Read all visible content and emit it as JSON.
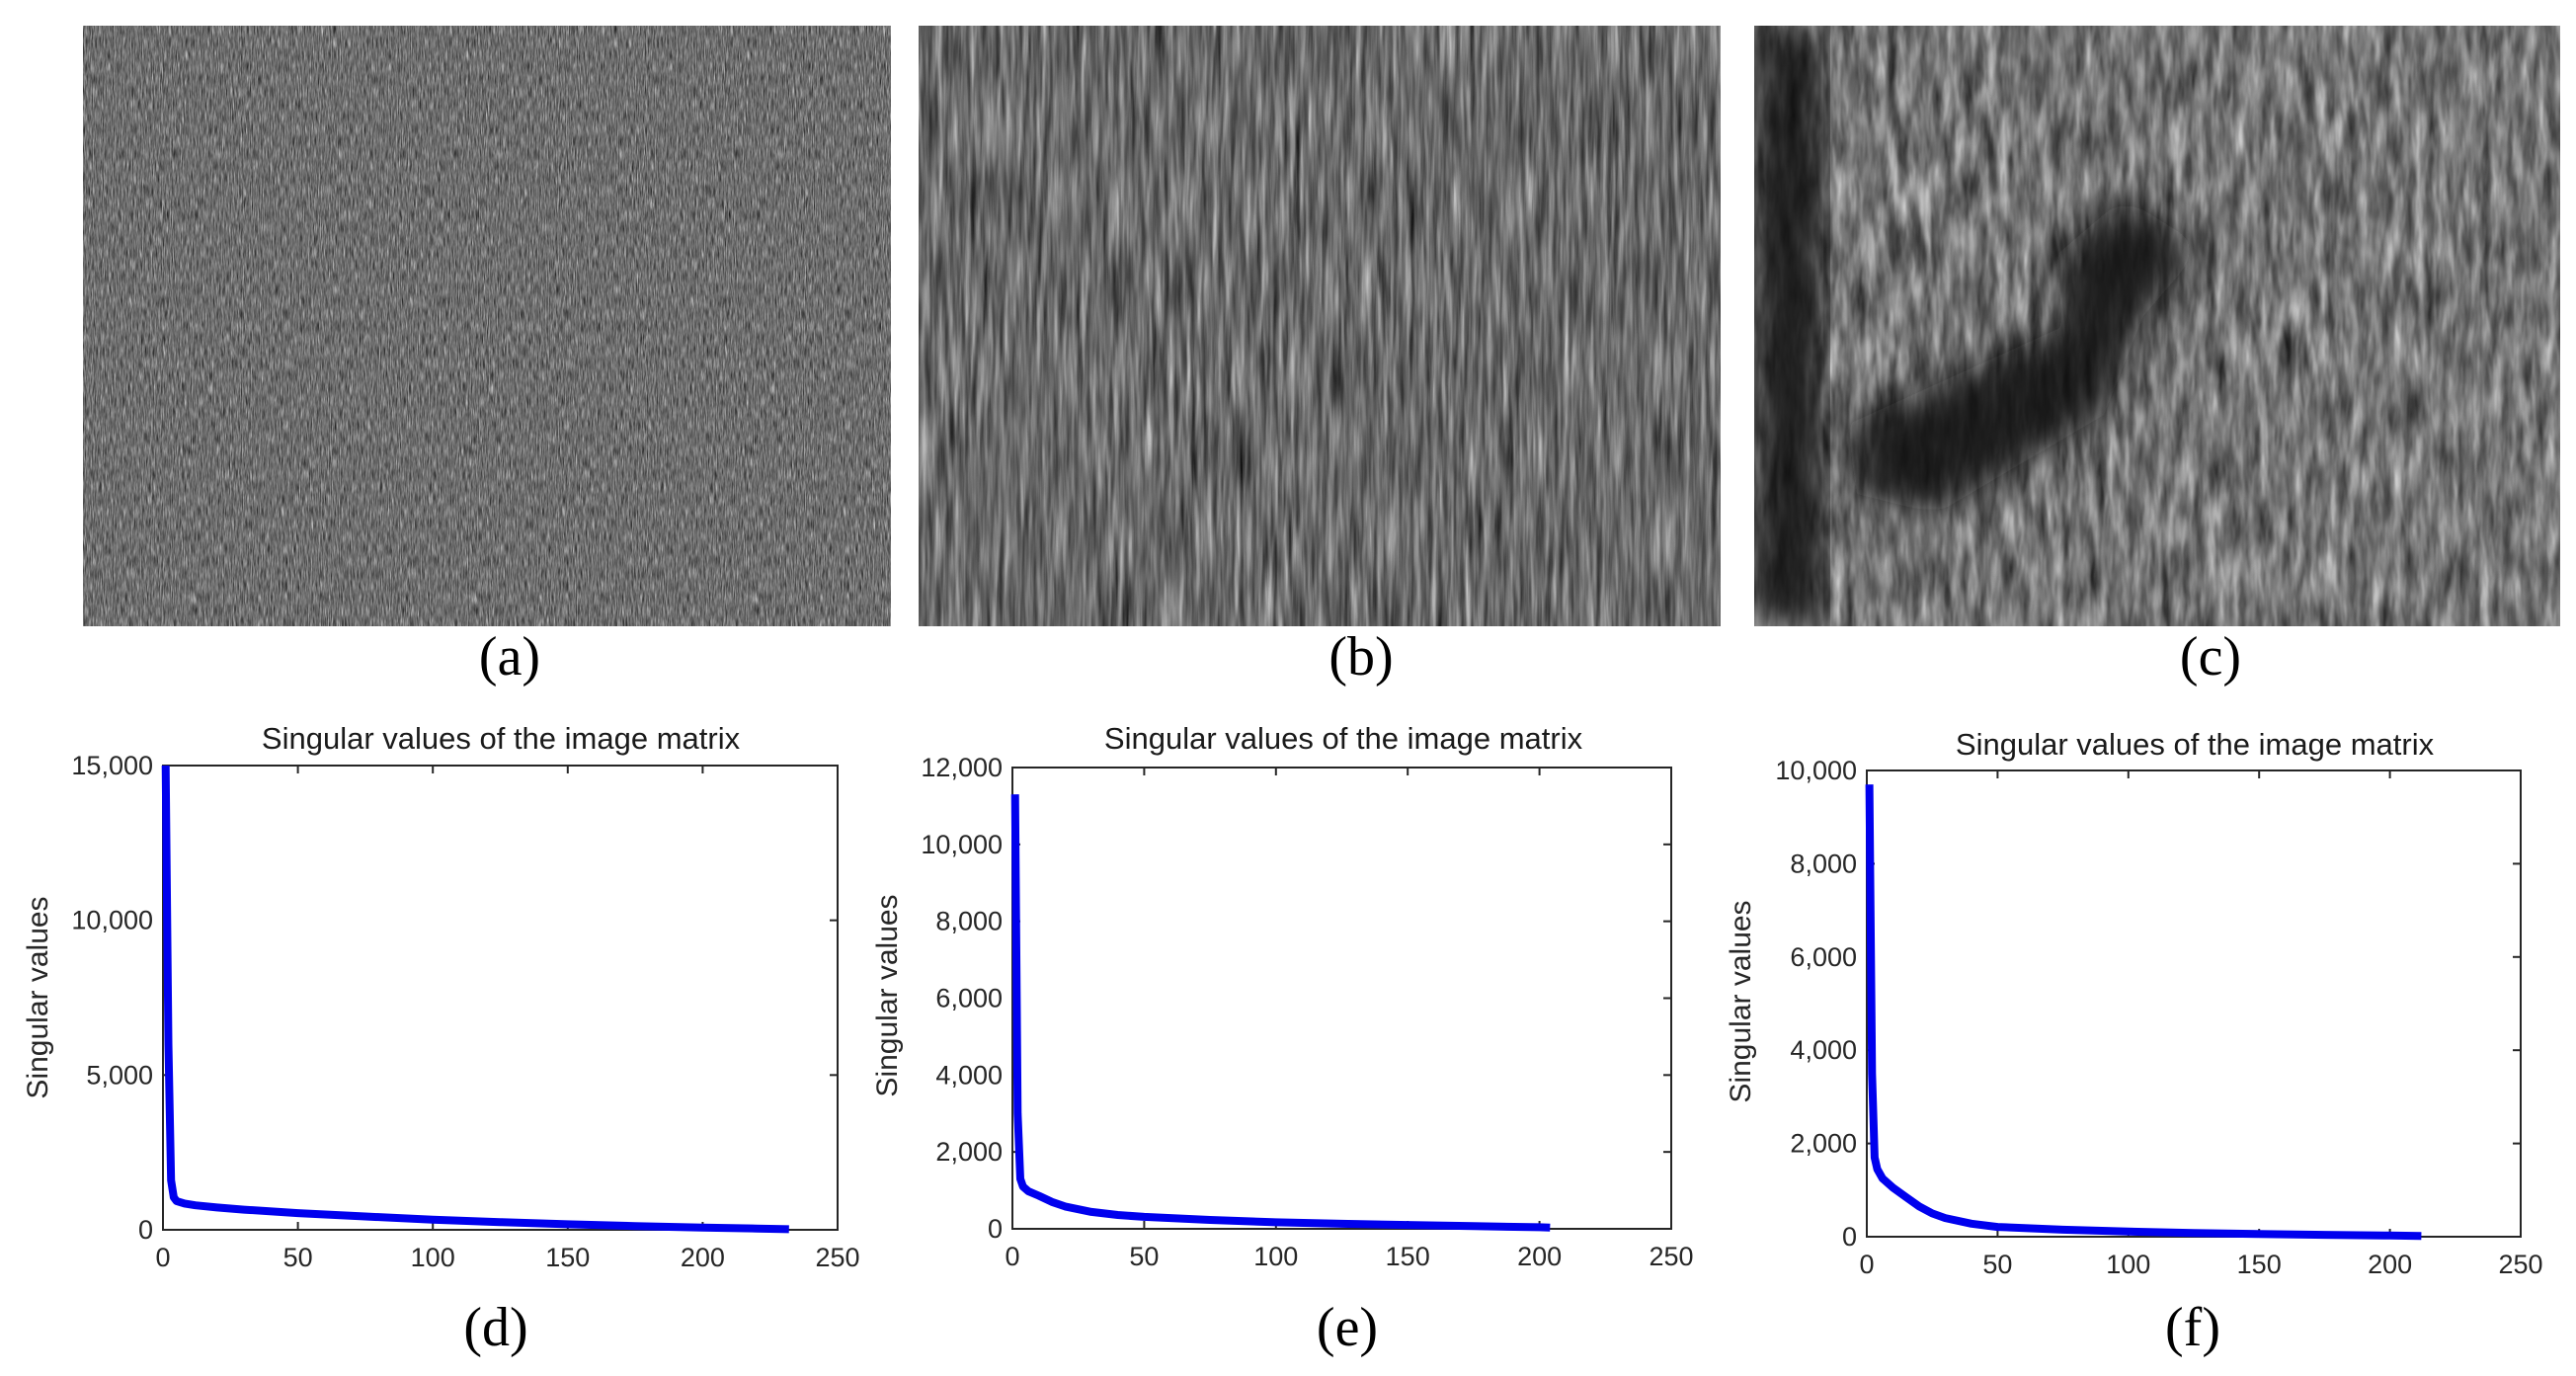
{
  "figure": {
    "panels_top": [
      {
        "id": "a",
        "label": "(a)",
        "texture": "dots-horizontal"
      },
      {
        "id": "b",
        "label": "(b)",
        "texture": "streaks-vertical"
      },
      {
        "id": "c",
        "label": "(c)",
        "texture": "streaks-with-dark-shape"
      }
    ],
    "colors": {
      "line": "#0000ee",
      "axis": "#262626",
      "background": "#ffffff"
    }
  },
  "chart_data": [
    {
      "id": "d",
      "label": "(d)",
      "type": "line",
      "title": "Singular values of the image matrix",
      "xlabel": "",
      "ylabel": "Singular values",
      "xlim": [
        0,
        250
      ],
      "ylim": [
        0,
        15000
      ],
      "xticks": [
        0,
        50,
        100,
        150,
        200,
        250
      ],
      "yticks": [
        0,
        5000,
        10000,
        15000
      ],
      "ytick_labels": [
        "0",
        "5,000",
        "10,000",
        "15,000"
      ],
      "grid": false,
      "series": [
        {
          "x": [
            1,
            2,
            3,
            4,
            5,
            8,
            12,
            20,
            30,
            50,
            75,
            100,
            125,
            150,
            175,
            200,
            220,
            232
          ],
          "y": [
            15000,
            6000,
            1600,
            1050,
            930,
            850,
            790,
            720,
            650,
            540,
            430,
            330,
            250,
            180,
            120,
            70,
            40,
            20
          ]
        }
      ]
    },
    {
      "id": "e",
      "label": "(e)",
      "type": "line",
      "title": "Singular values of the image matrix",
      "xlabel": "",
      "ylabel": "Singular values",
      "xlim": [
        0,
        250
      ],
      "ylim": [
        0,
        12000
      ],
      "xticks": [
        0,
        50,
        100,
        150,
        200,
        250
      ],
      "yticks": [
        0,
        2000,
        4000,
        6000,
        8000,
        10000,
        12000
      ],
      "ytick_labels": [
        "0",
        "2,000",
        "4,000",
        "6,000",
        "8,000",
        "10,000",
        "12,000"
      ],
      "grid": false,
      "series": [
        {
          "x": [
            1,
            2,
            3,
            4,
            6,
            10,
            15,
            20,
            30,
            40,
            50,
            75,
            100,
            125,
            150,
            175,
            200,
            204
          ],
          "y": [
            11300,
            3000,
            1300,
            1100,
            980,
            860,
            700,
            580,
            440,
            360,
            310,
            230,
            170,
            130,
            100,
            70,
            40,
            30
          ]
        }
      ]
    },
    {
      "id": "f",
      "label": "(f)",
      "type": "line",
      "title": "Singular values of the image matrix",
      "xlabel": "",
      "ylabel": "Singular values",
      "xlim": [
        0,
        250
      ],
      "ylim": [
        0,
        10000
      ],
      "xticks": [
        0,
        50,
        100,
        150,
        200,
        250
      ],
      "yticks": [
        0,
        2000,
        4000,
        6000,
        8000,
        10000
      ],
      "ytick_labels": [
        "0",
        "2,000",
        "4,000",
        "6,000",
        "8,000",
        "10,000"
      ],
      "grid": false,
      "series": [
        {
          "x": [
            1,
            2,
            3,
            4,
            6,
            10,
            15,
            20,
            25,
            30,
            40,
            50,
            75,
            100,
            125,
            150,
            175,
            200,
            212
          ],
          "y": [
            9700,
            3500,
            1700,
            1450,
            1250,
            1050,
            850,
            650,
            500,
            400,
            280,
            210,
            150,
            110,
            80,
            60,
            40,
            25,
            15
          ]
        }
      ]
    }
  ]
}
